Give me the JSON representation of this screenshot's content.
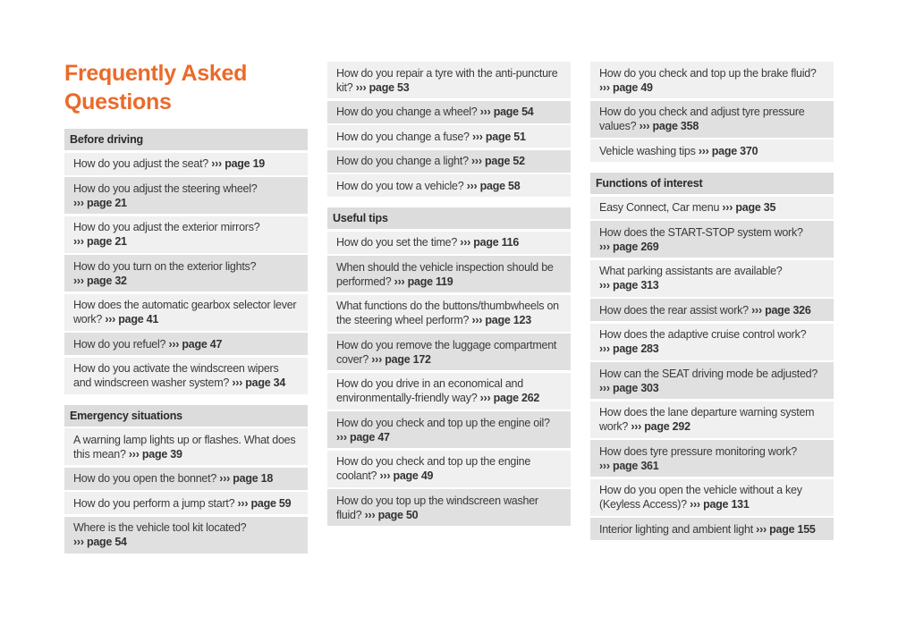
{
  "title": "Frequently Asked Questions",
  "colors": {
    "accent": "#ea6a2a",
    "row_light": "#f0f0f0",
    "row_dark": "#e0e0e0",
    "header": "#dcdcdc"
  },
  "columns": [
    [
      {
        "heading": "Before driving",
        "items": [
          {
            "q": "How do you adjust the seat?",
            "ref": "››› page 19"
          },
          {
            "q": "How do you adjust the steering wheel?",
            "ref": "››› page 21"
          },
          {
            "q": "How do you adjust the exterior mirrors?",
            "ref": "››› page 21"
          },
          {
            "q": "How do you turn on the exterior lights?",
            "ref": "››› page 32"
          },
          {
            "q": "How does the automatic gearbox selector lever work?",
            "ref": "››› page 41"
          },
          {
            "q": "How do you refuel?",
            "ref": "››› page 47"
          },
          {
            "q": "How do you activate the windscreen wipers and windscreen washer system?",
            "ref": "››› page 34"
          }
        ]
      },
      {
        "heading": "Emergency situations",
        "items": [
          {
            "q": "A warning lamp lights up or flashes. What does this mean?",
            "ref": "››› page 39"
          },
          {
            "q": "How do you open the bonnet?",
            "ref": "››› page 18"
          },
          {
            "q": "How do you perform a jump start?",
            "ref": "››› page 59"
          },
          {
            "q": "Where is the vehicle tool kit located?",
            "ref": "››› page 54"
          }
        ]
      }
    ],
    [
      {
        "heading": "",
        "items": [
          {
            "q": "How do you repair a tyre with the anti-puncture kit?",
            "ref": "››› page 53"
          },
          {
            "q": "How do you change a wheel?",
            "ref": "››› page 54"
          },
          {
            "q": "How do you change a fuse?",
            "ref": "››› page 51"
          },
          {
            "q": "How do you change a light?",
            "ref": "››› page 52"
          },
          {
            "q": "How do you tow a vehicle?",
            "ref": "››› page 58"
          }
        ]
      },
      {
        "heading": "Useful tips",
        "items": [
          {
            "q": "How do you set the time?",
            "ref": "››› page 116"
          },
          {
            "q": "When should the vehicle inspection should be performed?",
            "ref": "››› page 119"
          },
          {
            "q": "What functions do the buttons/thumbwheels on the steering wheel perform?",
            "ref": "››› page 123"
          },
          {
            "q": "How do you remove the luggage compartment cover?",
            "ref": "››› page 172"
          },
          {
            "q": "How do you drive in an economical and environmentally-friendly way?",
            "ref": "››› page 262"
          },
          {
            "q": "How do you check and top up the engine oil?",
            "ref": "››› page 47"
          },
          {
            "q": "How do you check and top up the engine coolant?",
            "ref": "››› page 49"
          },
          {
            "q": "How do you top up the windscreen washer fluid?",
            "ref": "››› page 50"
          }
        ]
      }
    ],
    [
      {
        "heading": "",
        "items": [
          {
            "q": "How do you check and top up the brake fluid?",
            "ref": "››› page 49"
          },
          {
            "q": "How do you check and adjust tyre pressure values?",
            "ref": "››› page 358"
          },
          {
            "q": "Vehicle washing tips",
            "ref": "››› page 370"
          }
        ]
      },
      {
        "heading": "Functions of interest",
        "items": [
          {
            "q": "Easy Connect, Car menu",
            "ref": "››› page 35"
          },
          {
            "q": "How does the START-STOP system work?",
            "ref": "››› page 269"
          },
          {
            "q": "What parking assistants are available?",
            "ref": "››› page 313"
          },
          {
            "q": "How does the rear assist work?",
            "ref": "››› page 326"
          },
          {
            "q": "How does the adaptive cruise control work?",
            "ref": "››› page 283"
          },
          {
            "q": "How can the SEAT driving mode be adjusted?",
            "ref": "››› page 303"
          },
          {
            "q": "How does the lane departure warning system work?",
            "ref": "››› page 292"
          },
          {
            "q": "How does tyre pressure monitoring work?",
            "ref": "››› page 361"
          },
          {
            "q": "How do you open the vehicle without a key (Keyless Access)?",
            "ref": "››› page 131"
          },
          {
            "q": "Interior lighting and ambient light",
            "ref": "››› page 155"
          }
        ]
      }
    ]
  ]
}
